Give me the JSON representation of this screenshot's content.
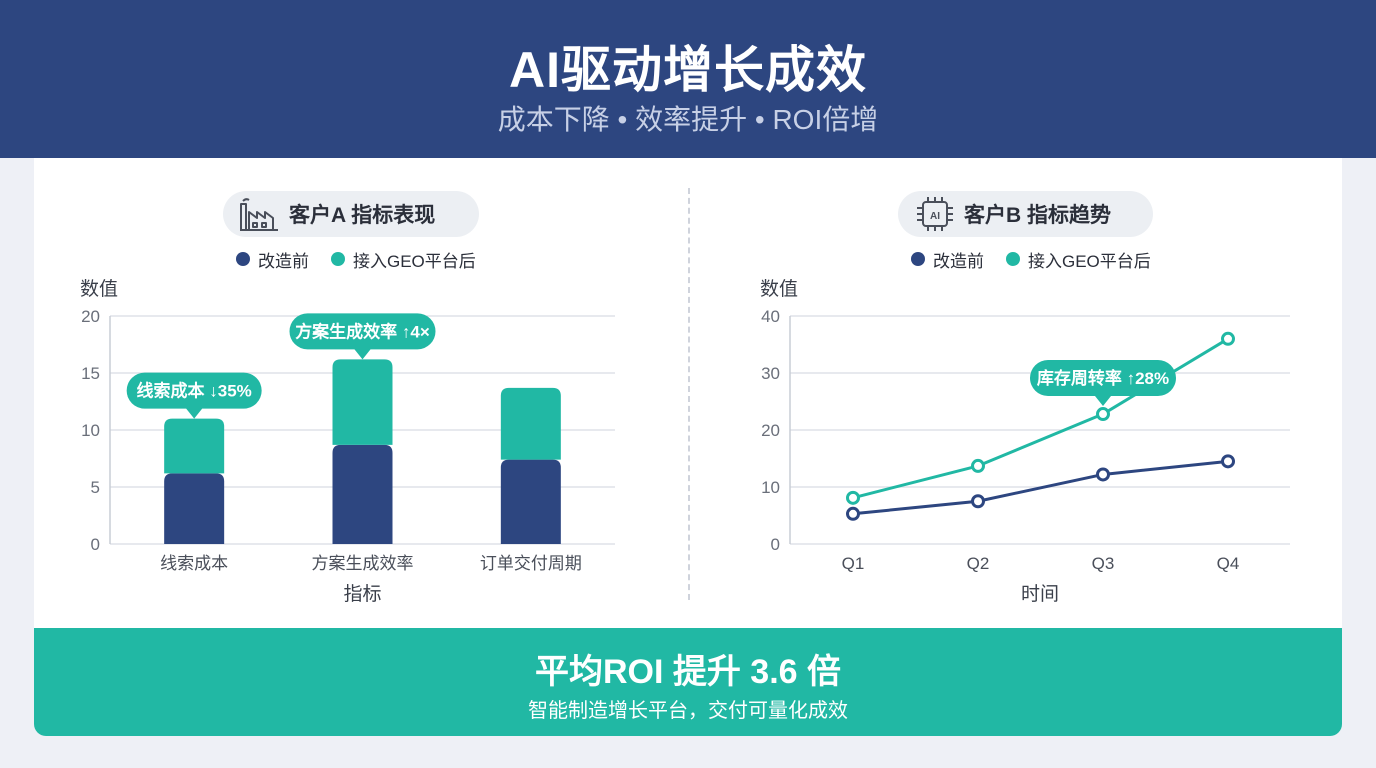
{
  "header": {
    "title": "AI驱动增长成效",
    "subtitle": "成本下降 • 效率提升 • ROI倍增"
  },
  "colors": {
    "navy": "#2d4680",
    "teal": "#21b8a4",
    "grid": "#dfe2e8",
    "axis_text": "#6a6f7a"
  },
  "chart_data": [
    {
      "type": "bar",
      "title": "客户A 指标表现",
      "icon": "factory-icon",
      "ylabel": "数值",
      "xlabel": "指标",
      "ylim": [
        0,
        20
      ],
      "yticks": [
        0,
        5,
        10,
        15,
        20
      ],
      "grid": true,
      "stacked": true,
      "legend_position": "top-center",
      "categories": [
        "线索成本",
        "方案生成效率",
        "订单交付周期"
      ],
      "series": [
        {
          "name": "改造前",
          "color": "#2d4680",
          "values": [
            6.2,
            8.7,
            7.4
          ]
        },
        {
          "name": "接入GEO平台后",
          "color": "#21b8a4",
          "values": [
            4.8,
            7.5,
            6.3
          ]
        }
      ],
      "annotations": [
        {
          "category": "线索成本",
          "text": "线索成本 ↓35%"
        },
        {
          "category": "方案生成效率",
          "text": "方案生成效率 ↑4×"
        }
      ]
    },
    {
      "type": "line",
      "title": "客户B 指标趋势",
      "icon": "ai-chip-icon",
      "ylabel": "数值",
      "xlabel": "时间",
      "ylim": [
        0,
        40
      ],
      "yticks": [
        0,
        10,
        20,
        30,
        40
      ],
      "grid": true,
      "legend_position": "top-center",
      "x": [
        "Q1",
        "Q2",
        "Q3",
        "Q4"
      ],
      "series": [
        {
          "name": "改造前",
          "color": "#2d4680",
          "values": [
            5.3,
            7.5,
            12.2,
            14.5
          ]
        },
        {
          "name": "接入GEO平台后",
          "color": "#21b8a4",
          "values": [
            8.1,
            13.7,
            22.8,
            36.0
          ]
        }
      ],
      "annotations": [
        {
          "x": "Q3",
          "series": "接入GEO平台后",
          "text": "库存周转率 ↑28%"
        }
      ]
    }
  ],
  "footer": {
    "headline": "平均ROI 提升 3.6 倍",
    "tagline": "智能制造增长平台，交付可量化成效"
  }
}
